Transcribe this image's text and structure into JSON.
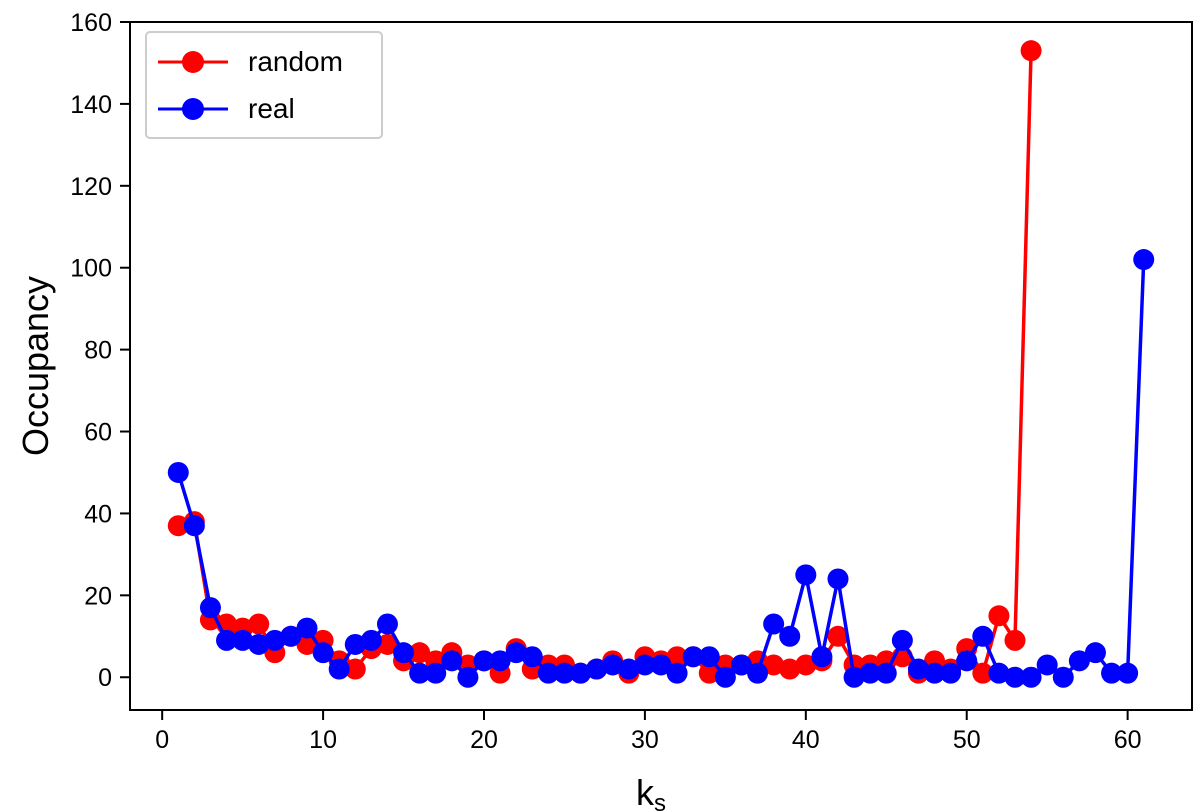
{
  "chart_data": {
    "type": "line",
    "ylabel": "Occupancy",
    "xlabel_main": "k",
    "xlabel_sub": "s",
    "xlim": [
      -2,
      64
    ],
    "ylim": [
      -8,
      160
    ],
    "xticks": [
      0,
      10,
      20,
      30,
      40,
      50,
      60
    ],
    "yticks": [
      0,
      20,
      40,
      60,
      80,
      100,
      120,
      140,
      160
    ],
    "grid": false,
    "legend_position": "top-left",
    "series": [
      {
        "name": "random",
        "color": "#ff0000",
        "x": [
          1,
          2,
          3,
          4,
          5,
          6,
          7,
          8,
          9,
          10,
          11,
          12,
          13,
          14,
          15,
          16,
          17,
          18,
          19,
          20,
          21,
          22,
          23,
          24,
          25,
          26,
          27,
          28,
          29,
          30,
          31,
          32,
          33,
          34,
          35,
          36,
          37,
          38,
          39,
          40,
          41,
          42,
          43,
          44,
          45,
          46,
          47,
          48,
          49,
          50,
          51,
          52,
          53,
          54
        ],
        "y": [
          37,
          38,
          14,
          13,
          12,
          13,
          6,
          10,
          8,
          9,
          4,
          2,
          7,
          8,
          4,
          6,
          4,
          6,
          3,
          4,
          1,
          7,
          2,
          3,
          3,
          1,
          2,
          4,
          1,
          5,
          4,
          5,
          5,
          1,
          3,
          3,
          4,
          3,
          2,
          3,
          4,
          10,
          3,
          3,
          4,
          5,
          1,
          4,
          2,
          7,
          1,
          15,
          9,
          153
        ]
      },
      {
        "name": "real",
        "color": "#0000ff",
        "x": [
          1,
          2,
          3,
          4,
          5,
          6,
          7,
          8,
          9,
          10,
          11,
          12,
          13,
          14,
          15,
          16,
          17,
          18,
          19,
          20,
          21,
          22,
          23,
          24,
          25,
          26,
          27,
          28,
          29,
          30,
          31,
          32,
          33,
          34,
          35,
          36,
          37,
          38,
          39,
          40,
          41,
          42,
          43,
          44,
          45,
          46,
          47,
          48,
          49,
          50,
          51,
          52,
          53,
          54,
          55,
          56,
          57,
          58,
          59,
          60,
          61
        ],
        "y": [
          50,
          37,
          17,
          9,
          9,
          8,
          9,
          10,
          12,
          6,
          2,
          8,
          9,
          13,
          6,
          1,
          1,
          4,
          0,
          4,
          4,
          6,
          5,
          1,
          1,
          1,
          2,
          3,
          2,
          3,
          3,
          1,
          5,
          5,
          0,
          3,
          1,
          13,
          10,
          25,
          5,
          24,
          0,
          1,
          1,
          9,
          2,
          1,
          1,
          4,
          10,
          1,
          0,
          0,
          3,
          0,
          4,
          6,
          1,
          1,
          102
        ]
      }
    ]
  }
}
